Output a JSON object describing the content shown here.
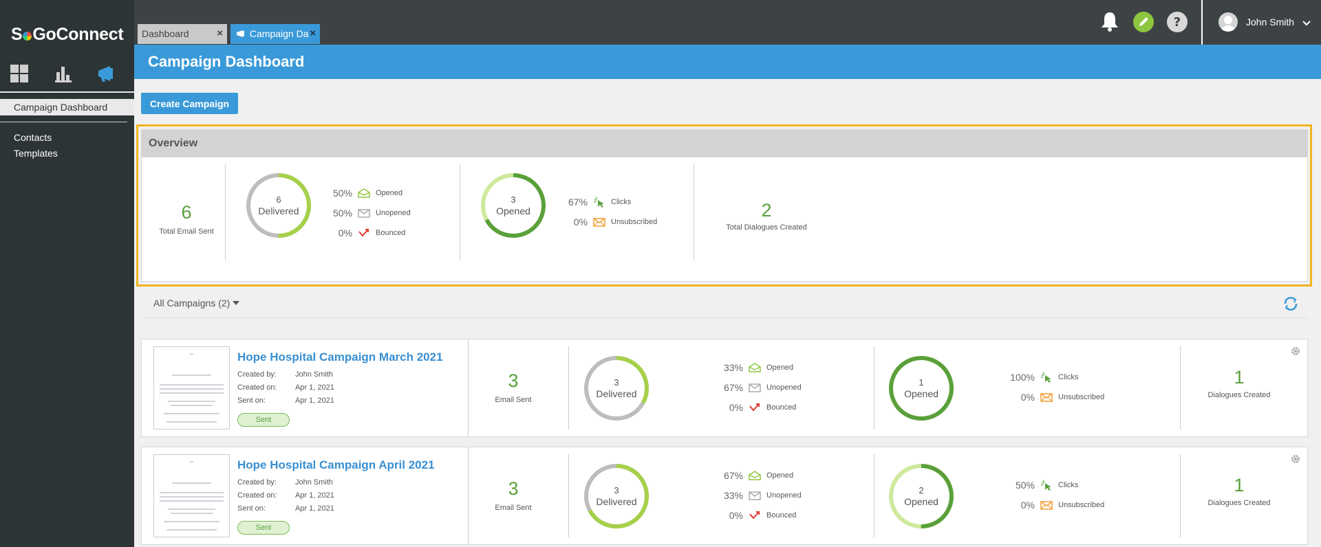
{
  "brand": {
    "logo_left": "S",
    "logo_right": "GoConnect",
    "accent": "#3a9ad9",
    "positive": "#5aa03a",
    "highlight": "#f5b41e"
  },
  "sidebar": {
    "nav_icons": [
      "dashboard-grid-icon",
      "bar-chart-icon",
      "megaphone-icon"
    ],
    "active_item": "Campaign Dashboard",
    "items": [
      "Contacts",
      "Templates"
    ]
  },
  "tabs": [
    {
      "label": "Dashboard",
      "close": "×"
    },
    {
      "label": "Campaign Da",
      "close": "×"
    }
  ],
  "header_icons": [
    "bell-icon",
    "pencil-icon",
    "help-icon"
  ],
  "user": {
    "name": "John Smith"
  },
  "page": {
    "title": "Campaign Dashboard",
    "create_button": "Create Campaign"
  },
  "overview": {
    "title": "Overview",
    "total_email_sent": "6",
    "total_email_sent_label": "Total Email Sent",
    "delivered": {
      "count": "6",
      "label": "Delivered",
      "fraction": 0.5
    },
    "delivery_stats": [
      {
        "pct": "50%",
        "label": "Opened",
        "icon": "open-envelope-icon"
      },
      {
        "pct": "50%",
        "label": "Unopened",
        "icon": "closed-envelope-icon"
      },
      {
        "pct": "0%",
        "label": "Bounced",
        "icon": "bounce-arrow-icon"
      }
    ],
    "opened": {
      "count": "3",
      "label": "Opened",
      "fraction": 0.67
    },
    "open_stats": [
      {
        "pct": "67%",
        "label": "Clicks",
        "icon": "cursor-click-icon"
      },
      {
        "pct": "0%",
        "label": "Unsubscribed",
        "icon": "unsubscribe-envelope-icon"
      }
    ],
    "dialogues": "2",
    "dialogues_label": "Total Dialogues Created"
  },
  "filter": {
    "label": "All Campaigns (2)"
  },
  "campaigns": [
    {
      "name": "Hope Hospital Campaign March 2021",
      "created_by_key": "Created by:",
      "created_by": "John Smith",
      "created_on_key": "Created on:",
      "created_on": "Apr 1, 2021",
      "sent_on_key": "Sent on:",
      "sent_on": "Apr 1, 2021",
      "status": "Sent",
      "email_sent": "3",
      "email_sent_label": "Email Sent",
      "delivered": {
        "count": "3",
        "label": "Delivered",
        "fraction": 0.33
      },
      "delivery_stats": [
        {
          "pct": "33%",
          "label": "Opened"
        },
        {
          "pct": "67%",
          "label": "Unopened"
        },
        {
          "pct": "0%",
          "label": "Bounced"
        }
      ],
      "opened": {
        "count": "1",
        "label": "Opened",
        "fraction": 1.0
      },
      "open_stats": [
        {
          "pct": "100%",
          "label": "Clicks"
        },
        {
          "pct": "0%",
          "label": "Unsubscribed"
        }
      ],
      "dialogues": "1",
      "dialogues_label": "Dialogues Created"
    },
    {
      "name": "Hope Hospital Campaign April 2021",
      "created_by_key": "Created by:",
      "created_by": "John Smith",
      "created_on_key": "Created on:",
      "created_on": "Apr 1, 2021",
      "sent_on_key": "Sent on:",
      "sent_on": "Apr 1, 2021",
      "status": "Sent",
      "email_sent": "3",
      "email_sent_label": "Email Sent",
      "delivered": {
        "count": "3",
        "label": "Delivered",
        "fraction": 0.67
      },
      "delivery_stats": [
        {
          "pct": "67%",
          "label": "Opened"
        },
        {
          "pct": "33%",
          "label": "Unopened"
        },
        {
          "pct": "0%",
          "label": "Bounced"
        }
      ],
      "opened": {
        "count": "2",
        "label": "Opened",
        "fraction": 0.5
      },
      "open_stats": [
        {
          "pct": "50%",
          "label": "Clicks"
        },
        {
          "pct": "0%",
          "label": "Unsubscribed"
        }
      ],
      "dialogues": "1",
      "dialogues_label": "Dialogues Created"
    }
  ]
}
